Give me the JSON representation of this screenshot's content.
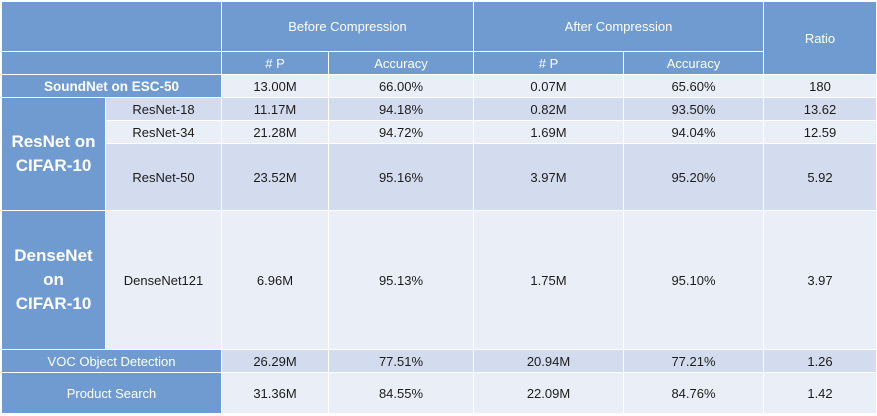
{
  "header": {
    "before": "Before Compression",
    "after": "After Compression",
    "ratio": "Ratio",
    "params": "# P",
    "accuracy": "Accuracy"
  },
  "groups": {
    "soundnet": "SoundNet on ESC-50",
    "resnet_line1": "ResNet on",
    "resnet_line2": "CIFAR-10",
    "densenet_line1": "DenseNet",
    "densenet_line2": "on",
    "densenet_line3": "CIFAR-10",
    "voc": "VOC Object Detection",
    "product": "Product Search"
  },
  "rows": [
    {
      "model": "",
      "before_p": "13.00M",
      "before_acc": "66.00%",
      "after_p": "0.07M",
      "after_acc": "65.60%",
      "ratio": "180"
    },
    {
      "model": "ResNet-18",
      "before_p": "11.17M",
      "before_acc": "94.18%",
      "after_p": "0.82M",
      "after_acc": "93.50%",
      "ratio": "13.62"
    },
    {
      "model": "ResNet-34",
      "before_p": "21.28M",
      "before_acc": "94.72%",
      "after_p": "1.69M",
      "after_acc": "94.04%",
      "ratio": "12.59"
    },
    {
      "model": "ResNet-50",
      "before_p": "23.52M",
      "before_acc": "95.16%",
      "after_p": "3.97M",
      "after_acc": "95.20%",
      "ratio": "5.92"
    },
    {
      "model": "DenseNet121",
      "before_p": "6.96M",
      "before_acc": "95.13%",
      "after_p": "1.75M",
      "after_acc": "95.10%",
      "ratio": "3.97"
    },
    {
      "model": "",
      "before_p": "26.29M",
      "before_acc": "77.51%",
      "after_p": "20.94M",
      "after_acc": "77.21%",
      "ratio": "1.26"
    },
    {
      "model": "",
      "before_p": "31.36M",
      "before_acc": "84.55%",
      "after_p": "22.09M",
      "after_acc": "84.76%",
      "ratio": "1.42"
    }
  ]
}
